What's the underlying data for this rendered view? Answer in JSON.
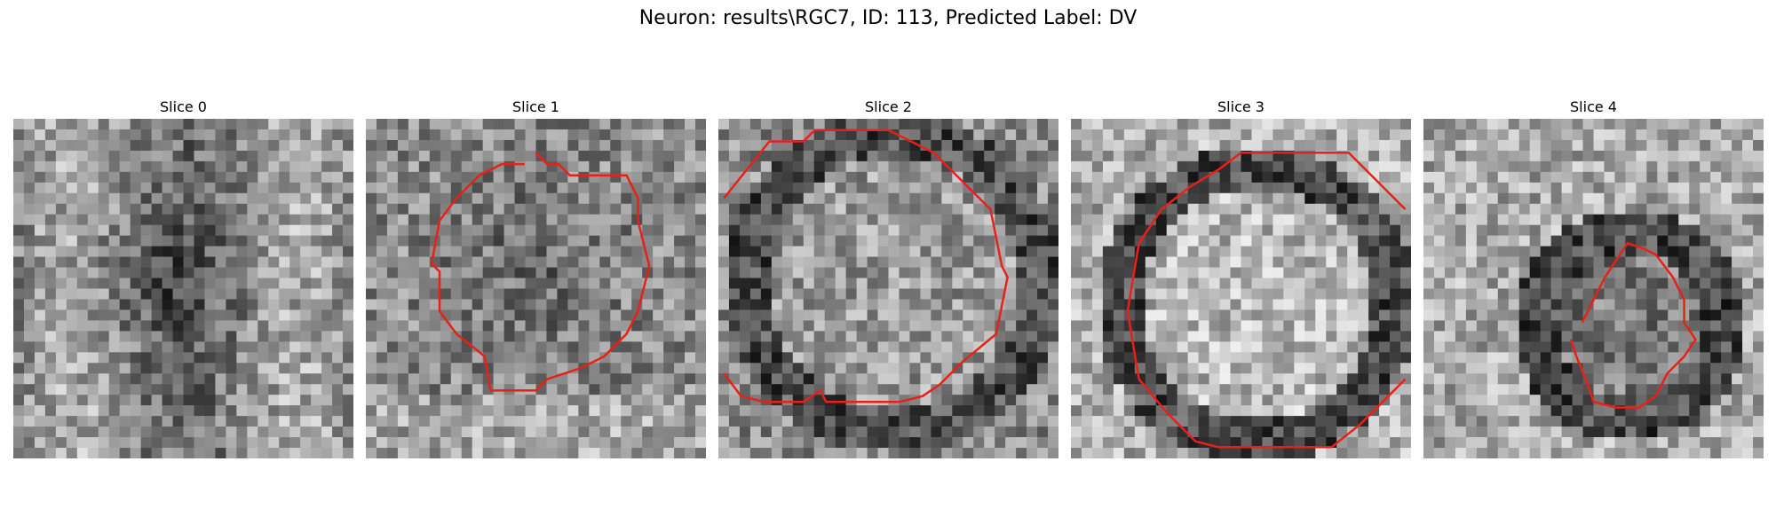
{
  "figure": {
    "title": "Neuron: results\\RGC7, ID: 113, Predicted Label: DV"
  },
  "panels": [
    {
      "title": "Slice 0",
      "has_contour": false
    },
    {
      "title": "Slice 1",
      "has_contour": true
    },
    {
      "title": "Slice 2",
      "has_contour": true
    },
    {
      "title": "Slice 3",
      "has_contour": true
    },
    {
      "title": "Slice 4",
      "has_contour": true
    }
  ],
  "style": {
    "contour_color": "#e8201a",
    "colormap": "grayscale",
    "grid_size": 32
  }
}
